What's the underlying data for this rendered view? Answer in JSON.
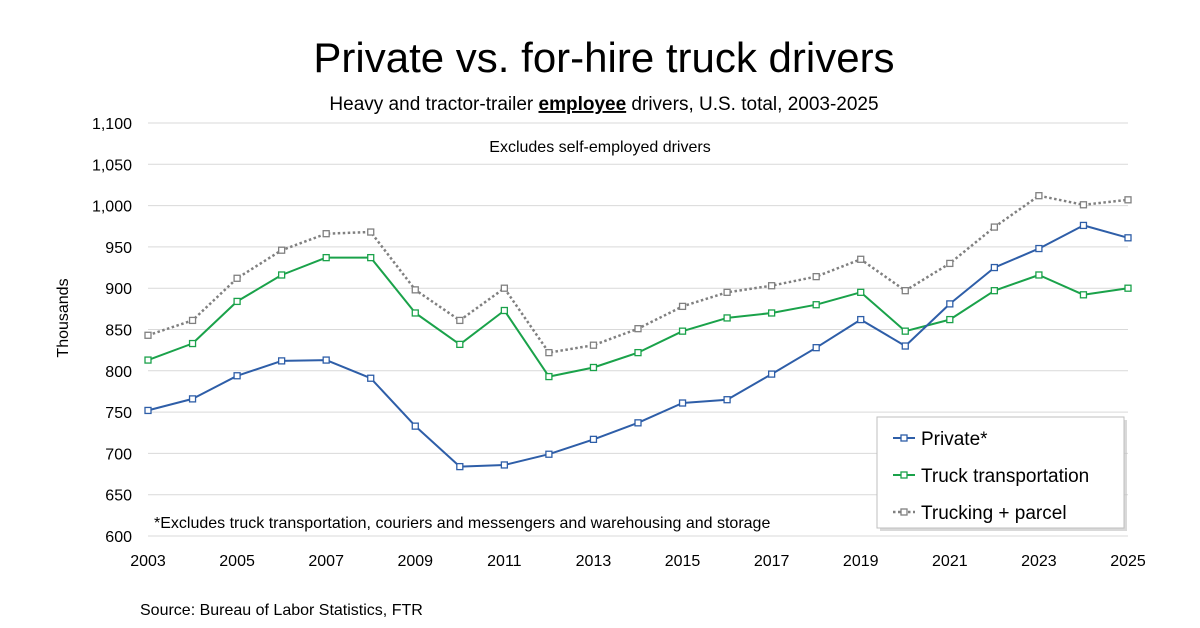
{
  "chart_data": {
    "type": "line",
    "title": "Private vs. for-hire truck drivers",
    "subtitle_before": "Heavy and tractor-trailer ",
    "subtitle_emphasis": "employee",
    "subtitle_after": " drivers, U.S. total, 2003-2025",
    "annotation": "Excludes self-employed drivers",
    "footnote": "*Excludes truck transportation, couriers and messengers and warehousing and storage",
    "source": "Source: Bureau of Labor Statistics, FTR",
    "ylabel": "Thousands",
    "xlabel": "",
    "ylim": [
      600,
      1100
    ],
    "yticks": [
      600,
      650,
      700,
      750,
      800,
      850,
      900,
      950,
      1000,
      1050,
      1100
    ],
    "ytick_labels": [
      "600",
      "650",
      "700",
      "750",
      "800",
      "850",
      "900",
      "950",
      "1,000",
      "1,050",
      "1,100"
    ],
    "xlim": [
      2003,
      2025
    ],
    "xticks": [
      2003,
      2005,
      2007,
      2009,
      2011,
      2013,
      2015,
      2017,
      2019,
      2021,
      2023,
      2025
    ],
    "grid": "horizontal",
    "legend_position": "bottom-right",
    "x": [
      2003,
      2004,
      2005,
      2006,
      2007,
      2008,
      2009,
      2010,
      2011,
      2012,
      2013,
      2014,
      2015,
      2016,
      2017,
      2018,
      2019,
      2020,
      2021,
      2022,
      2023,
      2024,
      2025
    ],
    "series": [
      {
        "name": "Private*",
        "color": "#2e5ea8",
        "style": "solid",
        "values": [
          752,
          766,
          794,
          812,
          813,
          791,
          733,
          684,
          686,
          699,
          717,
          737,
          761,
          765,
          796,
          828,
          862,
          830,
          881,
          925,
          948,
          976,
          961
        ]
      },
      {
        "name": "Truck transportation",
        "color": "#1aa24a",
        "style": "solid",
        "values": [
          813,
          833,
          884,
          916,
          937,
          937,
          870,
          832,
          873,
          793,
          804,
          822,
          848,
          864,
          870,
          880,
          895,
          848,
          862,
          897,
          916,
          892,
          900
        ]
      },
      {
        "name": "Trucking + parcel",
        "color": "#808080",
        "style": "dotted",
        "values": [
          843,
          861,
          912,
          946,
          966,
          968,
          898,
          861,
          900,
          822,
          831,
          851,
          878,
          895,
          903,
          914,
          935,
          897,
          930,
          974,
          1012,
          1001,
          1007
        ]
      }
    ]
  }
}
